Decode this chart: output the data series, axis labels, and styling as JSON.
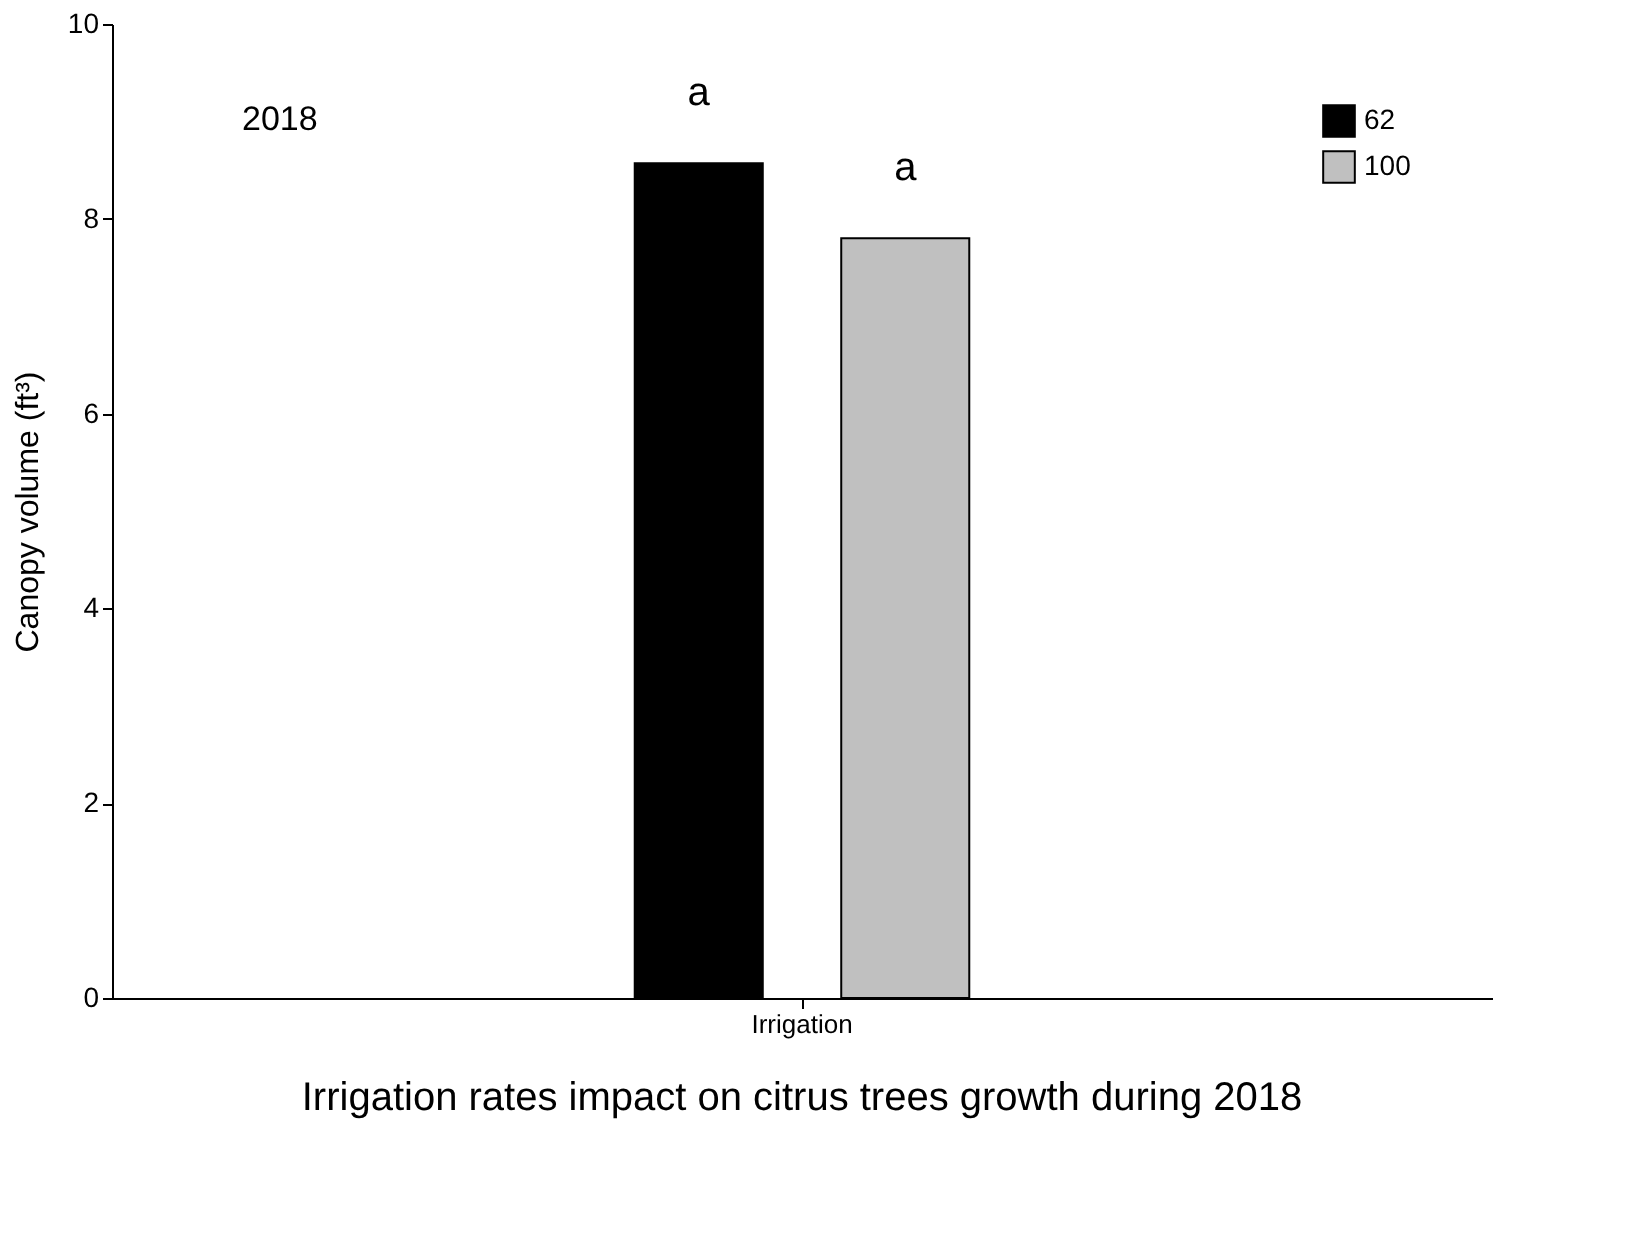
{
  "chart_data": {
    "type": "bar",
    "title": "Irrigation rates impact on citrus trees growth during 2018",
    "ylabel": "Canopy volume (ft³)",
    "categories": [
      "Irrigation"
    ],
    "series": [
      {
        "name": "62",
        "color": "#000000",
        "values": [
          8.57
        ]
      },
      {
        "name": "100",
        "color": "#c0c0c0",
        "values": [
          7.8
        ]
      }
    ],
    "ylim": [
      0,
      10
    ],
    "yticks": [
      0,
      2,
      4,
      6,
      8,
      10
    ],
    "grid": false,
    "legend": "top right",
    "annotations": [
      "2018",
      "a",
      "a"
    ]
  }
}
